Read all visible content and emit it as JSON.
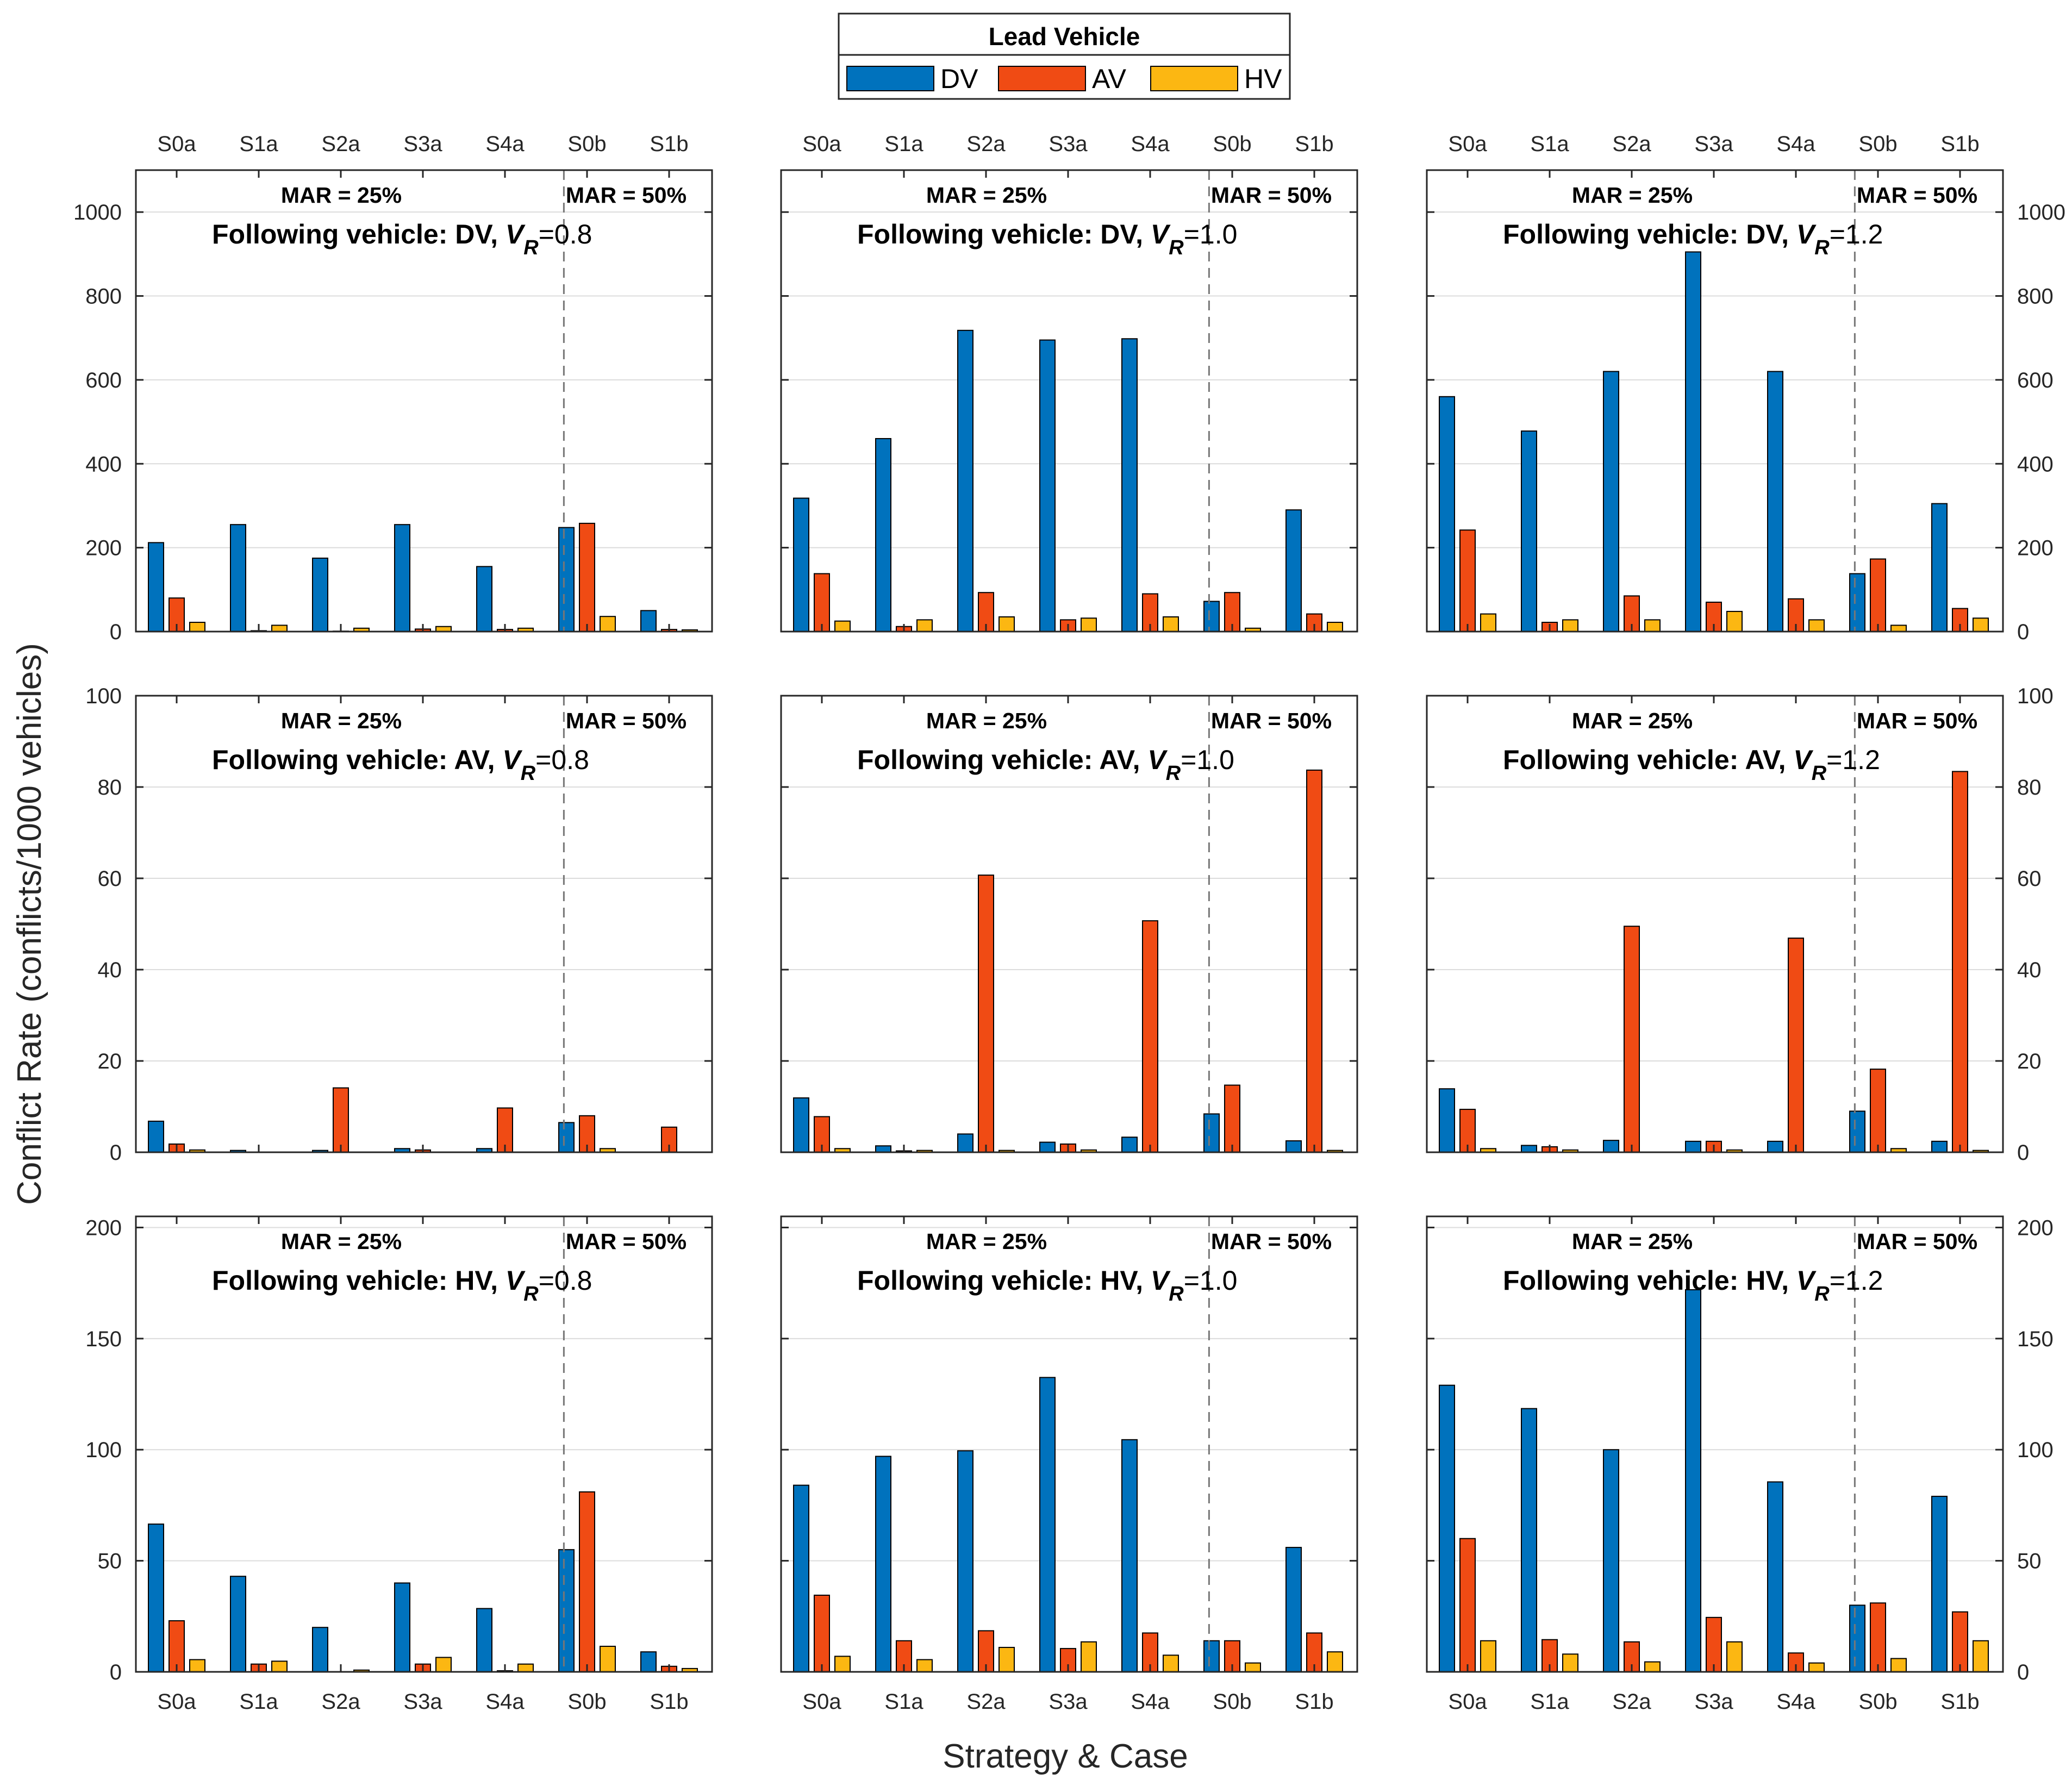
{
  "legend": {
    "title": "Lead Vehicle",
    "entries": [
      {
        "label": "DV",
        "color": "#0072BD"
      },
      {
        "label": "AV",
        "color": "#F04B14"
      },
      {
        "label": "HV",
        "color": "#FCB712"
      }
    ]
  },
  "xlabel": "Strategy & Case",
  "ylabel": "Conflict Rate (conflicts/1000 vehicles)",
  "mar_labels": [
    "MAR = 25%",
    "MAR = 50%"
  ],
  "chart_data": {
    "type": "bar",
    "title": "Lead Vehicle",
    "categories": [
      "S0a",
      "S1a",
      "S2a",
      "S3a",
      "S4a",
      "S0b",
      "S1b"
    ],
    "series_names": [
      "DV",
      "AV",
      "HV"
    ],
    "panels": [
      {
        "row": 0,
        "col": 0,
        "title_prefix": "Following vehicle: DV, ",
        "vr_symbol": "V",
        "vr_sub": "R",
        "vr_value": "=0.8",
        "ylim": [
          0,
          1100
        ],
        "yticks": [
          0,
          200,
          400,
          600,
          800,
          1000
        ],
        "series": [
          {
            "name": "DV",
            "values": [
              212,
              255,
              175,
              255,
              155,
              248,
              50
            ]
          },
          {
            "name": "AV",
            "values": [
              80,
              2,
              1,
              6,
              5,
              258,
              5
            ]
          },
          {
            "name": "HV",
            "values": [
              22,
              15,
              8,
              12,
              8,
              36,
              4
            ]
          }
        ]
      },
      {
        "row": 0,
        "col": 1,
        "title_prefix": "Following vehicle: DV, ",
        "vr_symbol": "V",
        "vr_sub": "R",
        "vr_value": "=1.0",
        "ylim": [
          0,
          1100
        ],
        "yticks": [
          0,
          200,
          400,
          600,
          800,
          1000
        ],
        "series": [
          {
            "name": "DV",
            "values": [
              318,
              460,
              718,
              695,
              698,
              72,
              290
            ]
          },
          {
            "name": "AV",
            "values": [
              138,
              12,
              93,
              28,
              90,
              93,
              42
            ]
          },
          {
            "name": "HV",
            "values": [
              25,
              28,
              35,
              32,
              35,
              8,
              22
            ]
          }
        ]
      },
      {
        "row": 0,
        "col": 2,
        "title_prefix": "Following vehicle: DV, ",
        "vr_symbol": "V",
        "vr_sub": "R",
        "vr_value": "=1.2",
        "ylim": [
          0,
          1100
        ],
        "yticks": [
          0,
          200,
          400,
          600,
          800,
          1000
        ],
        "series": [
          {
            "name": "DV",
            "values": [
              560,
              478,
              620,
              905,
              620,
              138,
              305
            ]
          },
          {
            "name": "AV",
            "values": [
              242,
              22,
              85,
              70,
              78,
              173,
              55
            ]
          },
          {
            "name": "HV",
            "values": [
              42,
              28,
              28,
              48,
              28,
              15,
              32
            ]
          }
        ]
      },
      {
        "row": 1,
        "col": 0,
        "title_prefix": "Following vehicle: AV, ",
        "vr_symbol": "V",
        "vr_sub": "R",
        "vr_value": "=0.8",
        "ylim": [
          0,
          100
        ],
        "yticks": [
          0,
          20,
          40,
          60,
          80,
          100
        ],
        "series": [
          {
            "name": "DV",
            "values": [
              6.8,
              0.4,
              0.4,
              0.8,
              0.8,
              6.5,
              0
            ]
          },
          {
            "name": "AV",
            "values": [
              1.8,
              0,
              14.1,
              0.5,
              9.7,
              8.0,
              5.5
            ]
          },
          {
            "name": "HV",
            "values": [
              0.5,
              0,
              0,
              0,
              0,
              0.8,
              0
            ]
          }
        ]
      },
      {
        "row": 1,
        "col": 1,
        "title_prefix": "Following vehicle: AV, ",
        "vr_symbol": "V",
        "vr_sub": "R",
        "vr_value": "=1.0",
        "ylim": [
          0,
          100
        ],
        "yticks": [
          0,
          20,
          40,
          60,
          80,
          100
        ],
        "series": [
          {
            "name": "DV",
            "values": [
              11.9,
              1.4,
              4.0,
              2.2,
              3.3,
              8.4,
              2.5
            ]
          },
          {
            "name": "AV",
            "values": [
              7.8,
              0.3,
              60.7,
              1.8,
              50.7,
              14.7,
              83.7
            ]
          },
          {
            "name": "HV",
            "values": [
              0.8,
              0.4,
              0.4,
              0.5,
              0,
              0,
              0.4
            ]
          }
        ]
      },
      {
        "row": 1,
        "col": 2,
        "title_prefix": "Following vehicle: AV, ",
        "vr_symbol": "V",
        "vr_sub": "R",
        "vr_value": "=1.2",
        "ylim": [
          0,
          100
        ],
        "yticks": [
          0,
          20,
          40,
          60,
          80,
          100
        ],
        "series": [
          {
            "name": "DV",
            "values": [
              13.9,
              1.5,
              2.6,
              2.4,
              2.4,
              9.0,
              2.4
            ]
          },
          {
            "name": "AV",
            "values": [
              9.4,
              1.2,
              49.5,
              2.4,
              46.9,
              18.2,
              83.4
            ]
          },
          {
            "name": "HV",
            "values": [
              0.8,
              0.5,
              0,
              0.5,
              0,
              0.8,
              0.4
            ]
          }
        ]
      },
      {
        "row": 2,
        "col": 0,
        "title_prefix": "Following vehicle: HV, ",
        "vr_symbol": "V",
        "vr_sub": "R",
        "vr_value": "=0.8",
        "ylim": [
          0,
          205
        ],
        "yticks": [
          0,
          50,
          100,
          150,
          200
        ],
        "series": [
          {
            "name": "DV",
            "values": [
              66.5,
              43,
              20,
              40,
              28.5,
              55,
              9
            ]
          },
          {
            "name": "AV",
            "values": [
              23,
              3.5,
              0,
              3.5,
              0.5,
              81,
              2.5
            ]
          },
          {
            "name": "HV",
            "values": [
              5.5,
              4.8,
              0.8,
              6.5,
              3.5,
              11.5,
              1.5
            ]
          }
        ]
      },
      {
        "row": 2,
        "col": 1,
        "title_prefix": "Following vehicle: HV, ",
        "vr_symbol": "V",
        "vr_sub": "R",
        "vr_value": "=1.0",
        "ylim": [
          0,
          205
        ],
        "yticks": [
          0,
          50,
          100,
          150,
          200
        ],
        "series": [
          {
            "name": "DV",
            "values": [
              84,
              97,
              99.5,
              132.5,
              104.5,
              14,
              56
            ]
          },
          {
            "name": "AV",
            "values": [
              34.5,
              14,
              18.5,
              10.5,
              17.5,
              14,
              17.5
            ]
          },
          {
            "name": "HV",
            "values": [
              7,
              5.5,
              11,
              13.5,
              7.5,
              4,
              9
            ]
          }
        ]
      },
      {
        "row": 2,
        "col": 2,
        "title_prefix": "Following vehicle: HV, ",
        "vr_symbol": "V",
        "vr_sub": "R",
        "vr_value": "=1.2",
        "ylim": [
          0,
          205
        ],
        "yticks": [
          0,
          50,
          100,
          150,
          200
        ],
        "series": [
          {
            "name": "DV",
            "values": [
              129,
              118.5,
              100,
              172,
              85.5,
              30,
              79
            ]
          },
          {
            "name": "AV",
            "values": [
              60,
              14.5,
              13.5,
              24.5,
              8.5,
              31,
              27
            ]
          },
          {
            "name": "HV",
            "values": [
              14,
              8,
              4.5,
              13.5,
              4,
              6,
              14
            ]
          }
        ]
      }
    ]
  }
}
